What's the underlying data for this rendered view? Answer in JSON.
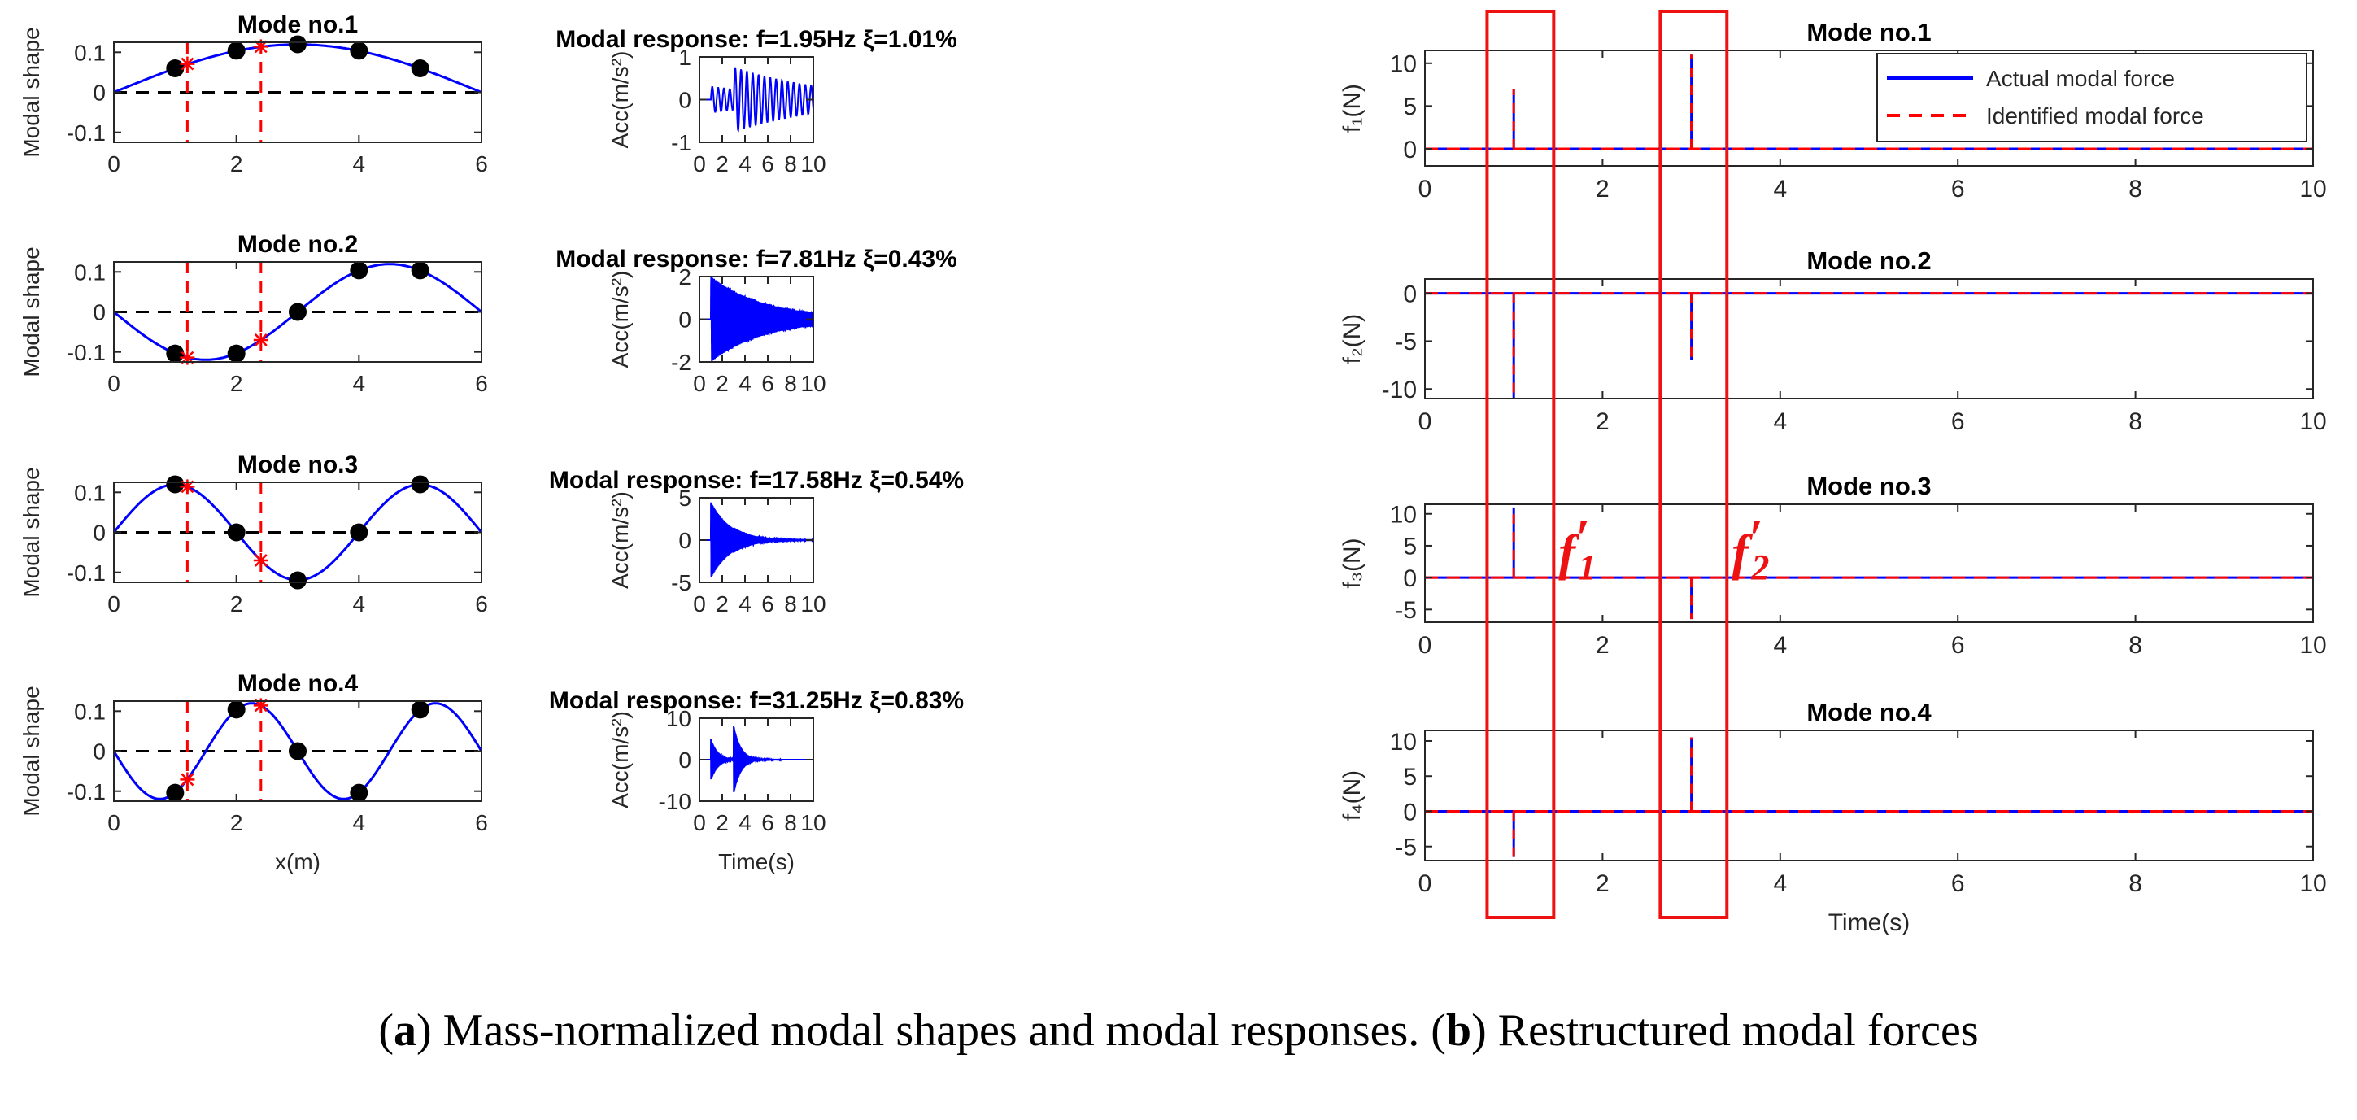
{
  "caption": {
    "part_a_letter": "a",
    "part_a_text": "Mass-normalized modal shapes and modal responses.",
    "part_b_letter": "b",
    "part_b_text": "Restructured modal forces"
  },
  "chart_data": [
    {
      "id": "shape1",
      "type": "line",
      "title": "Mode no.1",
      "xlabel": "",
      "ylabel": "Modal shape",
      "xlim": [
        0,
        6
      ],
      "ylim": [
        -0.125,
        0.125
      ],
      "xticks": [
        0,
        2,
        4,
        6
      ],
      "yticks": [
        -0.1,
        0,
        0.1
      ],
      "shape": {
        "mode": 1,
        "amplitude": 0.1195,
        "length": 6
      },
      "measured_points": {
        "x": [
          1,
          2,
          3,
          4,
          5
        ],
        "y": [
          0.06,
          0.104,
          0.12,
          0.104,
          0.06
        ]
      },
      "estimated_points": {
        "x": [
          1.2,
          2.4
        ],
        "y": [
          0.071,
          0.114
        ]
      },
      "reference_lines_x": [
        1.2,
        2.4
      ]
    },
    {
      "id": "resp1",
      "type": "line",
      "title": "Modal response: f=1.95Hz ξ=1.01%",
      "xlabel": "",
      "ylabel": "Acc(m/s²)",
      "xlim": [
        0,
        10
      ],
      "ylim": [
        -1,
        1
      ],
      "xticks": [
        0,
        2,
        4,
        6,
        8,
        10
      ],
      "yticks": [
        -1,
        0,
        1
      ],
      "response": {
        "frequency_hz": 1.95,
        "damping_pct": 1.01,
        "impulse_times": [
          1,
          3
        ],
        "amplitudes": [
          0.3,
          0.55
        ],
        "peak": 0.7
      }
    },
    {
      "id": "shape2",
      "type": "line",
      "title": "Mode no.2",
      "xlabel": "",
      "ylabel": "Modal shape",
      "xlim": [
        0,
        6
      ],
      "ylim": [
        -0.125,
        0.125
      ],
      "xticks": [
        0,
        2,
        4,
        6
      ],
      "yticks": [
        -0.1,
        0,
        0.1
      ],
      "shape": {
        "mode": 2,
        "amplitude": -0.1195,
        "length": 6
      },
      "measured_points": {
        "x": [
          1,
          2,
          3,
          4,
          5
        ],
        "y": [
          -0.104,
          -0.104,
          0,
          0.104,
          0.104
        ]
      },
      "estimated_points": {
        "x": [
          1.2,
          2.4
        ],
        "y": [
          -0.114,
          -0.07
        ]
      },
      "reference_lines_x": [
        1.2,
        2.4
      ]
    },
    {
      "id": "resp2",
      "type": "line",
      "title": "Modal response: f=7.81Hz ξ=0.43%",
      "xlabel": "",
      "ylabel": "Acc(m/s²)",
      "xlim": [
        0,
        10
      ],
      "ylim": [
        -2,
        2
      ],
      "xticks": [
        0,
        2,
        4,
        6,
        8,
        10
      ],
      "yticks": [
        -2,
        0,
        2
      ],
      "response": {
        "frequency_hz": 7.81,
        "damping_pct": 0.43,
        "impulse_times": [
          1,
          3
        ],
        "amplitudes": [
          2.0,
          0.0
        ],
        "peak": 2.0
      }
    },
    {
      "id": "shape3",
      "type": "line",
      "title": "Mode no.3",
      "xlabel": "",
      "ylabel": "Modal shape",
      "xlim": [
        0,
        6
      ],
      "ylim": [
        -0.125,
        0.125
      ],
      "xticks": [
        0,
        2,
        4,
        6
      ],
      "yticks": [
        -0.1,
        0,
        0.1
      ],
      "shape": {
        "mode": 3,
        "amplitude": 0.1195,
        "length": 6
      },
      "measured_points": {
        "x": [
          1,
          2,
          3,
          4,
          5
        ],
        "y": [
          0.12,
          0,
          -0.12,
          0,
          0.12
        ]
      },
      "estimated_points": {
        "x": [
          1.2,
          2.4
        ],
        "y": [
          0.114,
          -0.07
        ]
      },
      "reference_lines_x": [
        1.2,
        2.4
      ]
    },
    {
      "id": "resp3",
      "type": "line",
      "title": "Modal response: f=17.58Hz ξ=0.54%",
      "xlabel": "",
      "ylabel": "Acc(m/s²)",
      "xlim": [
        0,
        10
      ],
      "ylim": [
        -5,
        5
      ],
      "xticks": [
        0,
        2,
        4,
        6,
        8,
        10
      ],
      "yticks": [
        -5,
        0,
        5
      ],
      "response": {
        "frequency_hz": 17.58,
        "damping_pct": 0.54,
        "impulse_times": [
          1,
          3
        ],
        "amplitudes": [
          4.5,
          -1.7
        ],
        "peak": 4.5
      }
    },
    {
      "id": "shape4",
      "type": "line",
      "title": "Mode no.4",
      "xlabel": "x(m)",
      "ylabel": "Modal shape",
      "xlim": [
        0,
        6
      ],
      "ylim": [
        -0.125,
        0.125
      ],
      "xticks": [
        0,
        2,
        4,
        6
      ],
      "yticks": [
        -0.1,
        0,
        0.1
      ],
      "shape": {
        "mode": 4,
        "amplitude": -0.1195,
        "length": 6
      },
      "measured_points": {
        "x": [
          1,
          2,
          3,
          4,
          5
        ],
        "y": [
          -0.104,
          0.104,
          0,
          -0.104,
          0.104
        ]
      },
      "estimated_points": {
        "x": [
          1.2,
          2.4
        ],
        "y": [
          -0.071,
          0.114
        ]
      },
      "reference_lines_x": [
        1.2,
        2.4
      ]
    },
    {
      "id": "resp4",
      "type": "line",
      "title": "Modal response: f=31.25Hz ξ=0.83%",
      "xlabel": "Time(s)",
      "ylabel": "Acc(m/s²)",
      "xlim": [
        0,
        10
      ],
      "ylim": [
        -10,
        10
      ],
      "xticks": [
        0,
        2,
        4,
        6,
        8,
        10
      ],
      "yticks": [
        -10,
        0,
        10
      ],
      "response": {
        "frequency_hz": 31.25,
        "damping_pct": 0.83,
        "impulse_times": [
          1,
          3
        ],
        "amplitudes": [
          5,
          8.5
        ],
        "peak": 8.5
      }
    },
    {
      "id": "force1",
      "type": "line",
      "title": "Mode no.1",
      "xlabel": "",
      "ylabel": "f₁(N)",
      "xlim": [
        0,
        10
      ],
      "ylim": [
        -2,
        11.5
      ],
      "xticks": [
        0,
        2,
        4,
        6,
        8,
        10
      ],
      "yticks": [
        0,
        5,
        10
      ],
      "series": [
        {
          "name": "Actual modal force",
          "impulses": [
            {
              "t": 1,
              "value": 7
            },
            {
              "t": 3,
              "value": 11
            }
          ]
        },
        {
          "name": "Identified modal force",
          "impulses": [
            {
              "t": 1,
              "value": 7
            },
            {
              "t": 3,
              "value": 11
            }
          ]
        }
      ],
      "legend": "top-right"
    },
    {
      "id": "force2",
      "type": "line",
      "title": "Mode no.2",
      "xlabel": "",
      "ylabel": "f₂(N)",
      "xlim": [
        0,
        10
      ],
      "ylim": [
        -11,
        1.5
      ],
      "xticks": [
        0,
        2,
        4,
        6,
        8,
        10
      ],
      "yticks": [
        -10,
        -5,
        0
      ],
      "series": [
        {
          "name": "",
          "impulses": [
            {
              "t": 1,
              "value": -11
            },
            {
              "t": 3,
              "value": -7
            }
          ]
        },
        {
          "name": "",
          "impulses": [
            {
              "t": 1,
              "value": -11
            },
            {
              "t": 3,
              "value": -7
            }
          ]
        }
      ]
    },
    {
      "id": "force3",
      "type": "line",
      "title": "Mode no.3",
      "xlabel": "",
      "ylabel": "f₃(N)",
      "xlim": [
        0,
        10
      ],
      "ylim": [
        -7,
        11.5
      ],
      "xticks": [
        0,
        2,
        4,
        6,
        8,
        10
      ],
      "yticks": [
        -5,
        0,
        5,
        10
      ],
      "series": [
        {
          "name": "",
          "impulses": [
            {
              "t": 1,
              "value": 11
            },
            {
              "t": 3,
              "value": -6.5
            }
          ]
        },
        {
          "name": "",
          "impulses": [
            {
              "t": 1,
              "value": 11
            },
            {
              "t": 3,
              "value": -6.5
            }
          ]
        }
      ]
    },
    {
      "id": "force4",
      "type": "line",
      "title": "Mode no.4",
      "xlabel": "Time(s)",
      "ylabel": "f₄(N)",
      "xlim": [
        0,
        10
      ],
      "ylim": [
        -7,
        11.5
      ],
      "xticks": [
        0,
        2,
        4,
        6,
        8,
        10
      ],
      "yticks": [
        -5,
        0,
        5,
        10
      ],
      "series": [
        {
          "name": "",
          "impulses": [
            {
              "t": 1,
              "value": -6.5
            },
            {
              "t": 3,
              "value": 10.5
            }
          ]
        },
        {
          "name": "",
          "impulses": [
            {
              "t": 1,
              "value": -6.5
            },
            {
              "t": 3,
              "value": 10.5
            }
          ]
        }
      ]
    }
  ],
  "highlights": [
    {
      "label_main": "f",
      "label_prime": "′",
      "label_sub": "1",
      "t_range": [
        0.7,
        1.45
      ]
    },
    {
      "label_main": "f",
      "label_prime": "′",
      "label_sub": "2",
      "t_range": [
        2.65,
        3.4
      ]
    }
  ],
  "colors": {
    "actual": "#0000ff",
    "identified": "#ff0000",
    "marker": "#000000",
    "highlight": "#ee1111",
    "axis": "#262626"
  }
}
